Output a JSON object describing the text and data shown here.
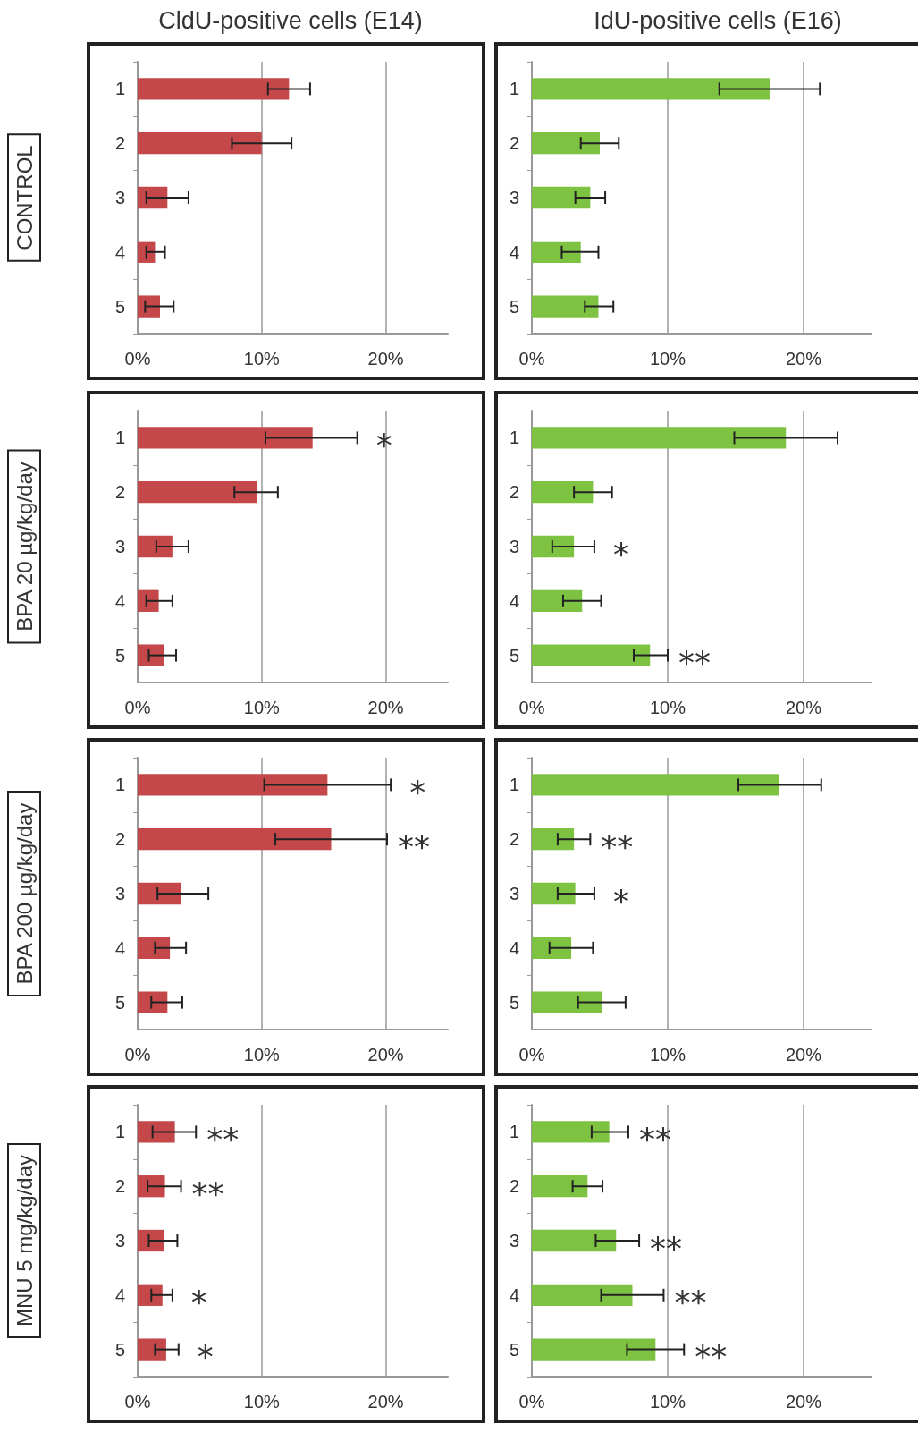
{
  "chart_data": [
    {
      "type": "bar",
      "orientation": "horizontal",
      "title": "CldU-positive cells (E14)",
      "ylabel": "CONTROL",
      "categories": [
        "1",
        "2",
        "3",
        "4",
        "5"
      ],
      "color": "#c4484a",
      "values": [
        12.2,
        10.0,
        2.4,
        1.4,
        1.8
      ],
      "errors": [
        [
          10.5,
          13.9
        ],
        [
          7.6,
          12.4
        ],
        [
          0.7,
          4.1
        ],
        [
          0.7,
          2.2
        ],
        [
          0.6,
          2.9
        ]
      ],
      "xlim": [
        0,
        25
      ],
      "xticks": [
        {
          "value": 0,
          "label": "0%"
        },
        {
          "value": 10,
          "label": "10%"
        },
        {
          "value": 20,
          "label": "20%"
        }
      ],
      "grid": "x"
    },
    {
      "type": "bar",
      "orientation": "horizontal",
      "title": "IdU-positive cells (E16)",
      "categories": [
        "1",
        "2",
        "3",
        "4",
        "5"
      ],
      "color": "#7ec242",
      "values": [
        17.5,
        5.0,
        4.3,
        3.6,
        4.9
      ],
      "errors": [
        [
          13.8,
          21.2
        ],
        [
          3.6,
          6.4
        ],
        [
          3.2,
          5.4
        ],
        [
          2.2,
          4.9
        ],
        [
          3.9,
          6.0
        ]
      ],
      "xlim": [
        0,
        25
      ],
      "xticks": [
        {
          "value": 0,
          "label": "0%"
        },
        {
          "value": 10,
          "label": "10%"
        },
        {
          "value": 20,
          "label": "20%"
        }
      ],
      "grid": "x"
    },
    {
      "type": "bar",
      "orientation": "horizontal",
      "ylabel": "BPA 20 µg/kg/day",
      "categories": [
        "1",
        "2",
        "3",
        "4",
        "5"
      ],
      "color": "#c4484a",
      "values": [
        14.1,
        9.6,
        2.8,
        1.7,
        2.1
      ],
      "errors": [
        [
          10.3,
          17.7
        ],
        [
          7.8,
          11.3
        ],
        [
          1.5,
          4.1
        ],
        [
          0.7,
          2.8
        ],
        [
          0.9,
          3.1
        ]
      ],
      "xlim": [
        0,
        25
      ],
      "xticks": [
        {
          "value": 0,
          "label": "0%"
        },
        {
          "value": 10,
          "label": "10%"
        },
        {
          "value": 20,
          "label": "20%"
        }
      ],
      "grid": "x",
      "annotations": [
        {
          "text": "*",
          "x": 17.7,
          "y": "1"
        }
      ]
    },
    {
      "type": "bar",
      "orientation": "horizontal",
      "categories": [
        "1",
        "2",
        "3",
        "4",
        "5"
      ],
      "color": "#7ec242",
      "values": [
        18.7,
        4.5,
        3.1,
        3.7,
        8.7
      ],
      "errors": [
        [
          14.9,
          22.5
        ],
        [
          3.1,
          5.9
        ],
        [
          1.5,
          4.6
        ],
        [
          2.3,
          5.1
        ],
        [
          7.5,
          10.0
        ]
      ],
      "xlim": [
        0,
        25
      ],
      "xticks": [
        {
          "value": 0,
          "label": "0%"
        },
        {
          "value": 10,
          "label": "10%"
        },
        {
          "value": 20,
          "label": "20%"
        }
      ],
      "grid": "x",
      "annotations": [
        {
          "text": "*",
          "x": 4.6,
          "y": "3"
        },
        {
          "text": "**",
          "x": 10.0,
          "y": "5"
        }
      ]
    },
    {
      "type": "bar",
      "orientation": "horizontal",
      "ylabel": "BPA 200 µg/kg/day",
      "categories": [
        "1",
        "2",
        "3",
        "4",
        "5"
      ],
      "color": "#c4484a",
      "values": [
        15.3,
        15.6,
        3.5,
        2.6,
        2.4
      ],
      "errors": [
        [
          10.2,
          20.4
        ],
        [
          11.1,
          20.1
        ],
        [
          1.6,
          5.7
        ],
        [
          1.4,
          3.9
        ],
        [
          1.1,
          3.6
        ]
      ],
      "xlim": [
        0,
        25
      ],
      "xticks": [
        {
          "value": 0,
          "label": "0%"
        },
        {
          "value": 10,
          "label": "10%"
        },
        {
          "value": 20,
          "label": "20%"
        }
      ],
      "grid": "x",
      "annotations": [
        {
          "text": "*",
          "x": 20.4,
          "y": "1"
        },
        {
          "text": "**",
          "x": 20.1,
          "y": "2"
        }
      ]
    },
    {
      "type": "bar",
      "orientation": "horizontal",
      "categories": [
        "1",
        "2",
        "3",
        "4",
        "5"
      ],
      "color": "#7ec242",
      "values": [
        18.2,
        3.1,
        3.2,
        2.9,
        5.2
      ],
      "errors": [
        [
          15.2,
          21.3
        ],
        [
          1.9,
          4.3
        ],
        [
          1.9,
          4.6
        ],
        [
          1.3,
          4.5
        ],
        [
          3.4,
          6.9
        ]
      ],
      "xlim": [
        0,
        25
      ],
      "xticks": [
        {
          "value": 0,
          "label": "0%"
        },
        {
          "value": 10,
          "label": "10%"
        },
        {
          "value": 20,
          "label": "20%"
        }
      ],
      "grid": "x",
      "annotations": [
        {
          "text": "**",
          "x": 4.3,
          "y": "2"
        },
        {
          "text": "*",
          "x": 4.6,
          "y": "3"
        }
      ]
    },
    {
      "type": "bar",
      "orientation": "horizontal",
      "ylabel": "MNU 5 mg/kg/day",
      "categories": [
        "1",
        "2",
        "3",
        "4",
        "5"
      ],
      "color": "#c4484a",
      "values": [
        3.0,
        2.2,
        2.1,
        2.0,
        2.3
      ],
      "errors": [
        [
          1.2,
          4.7
        ],
        [
          0.8,
          3.5
        ],
        [
          0.9,
          3.2
        ],
        [
          1.1,
          2.8
        ],
        [
          1.4,
          3.3
        ]
      ],
      "xlim": [
        0,
        25
      ],
      "xticks": [
        {
          "value": 0,
          "label": "0%"
        },
        {
          "value": 10,
          "label": "10%"
        },
        {
          "value": 20,
          "label": "20%"
        }
      ],
      "grid": "x",
      "annotations": [
        {
          "text": "**",
          "x": 4.7,
          "y": "1"
        },
        {
          "text": "**",
          "x": 3.5,
          "y": "2"
        },
        {
          "text": "*",
          "x": 2.8,
          "y": "4"
        },
        {
          "text": "*",
          "x": 3.3,
          "y": "5"
        }
      ]
    },
    {
      "type": "bar",
      "orientation": "horizontal",
      "categories": [
        "1",
        "2",
        "3",
        "4",
        "5"
      ],
      "color": "#7ec242",
      "values": [
        5.7,
        4.1,
        6.2,
        7.4,
        9.1
      ],
      "errors": [
        [
          4.4,
          7.1
        ],
        [
          3.0,
          5.2
        ],
        [
          4.7,
          7.9
        ],
        [
          5.1,
          9.7
        ],
        [
          7.0,
          11.2
        ]
      ],
      "xlim": [
        0,
        25
      ],
      "xticks": [
        {
          "value": 0,
          "label": "0%"
        },
        {
          "value": 10,
          "label": "10%"
        },
        {
          "value": 20,
          "label": "20%"
        }
      ],
      "grid": "x",
      "annotations": [
        {
          "text": "**",
          "x": 7.1,
          "y": "1"
        },
        {
          "text": "**",
          "x": 7.9,
          "y": "3"
        },
        {
          "text": "**",
          "x": 9.7,
          "y": "4"
        },
        {
          "text": "**",
          "x": 11.2,
          "y": "5"
        }
      ]
    }
  ]
}
